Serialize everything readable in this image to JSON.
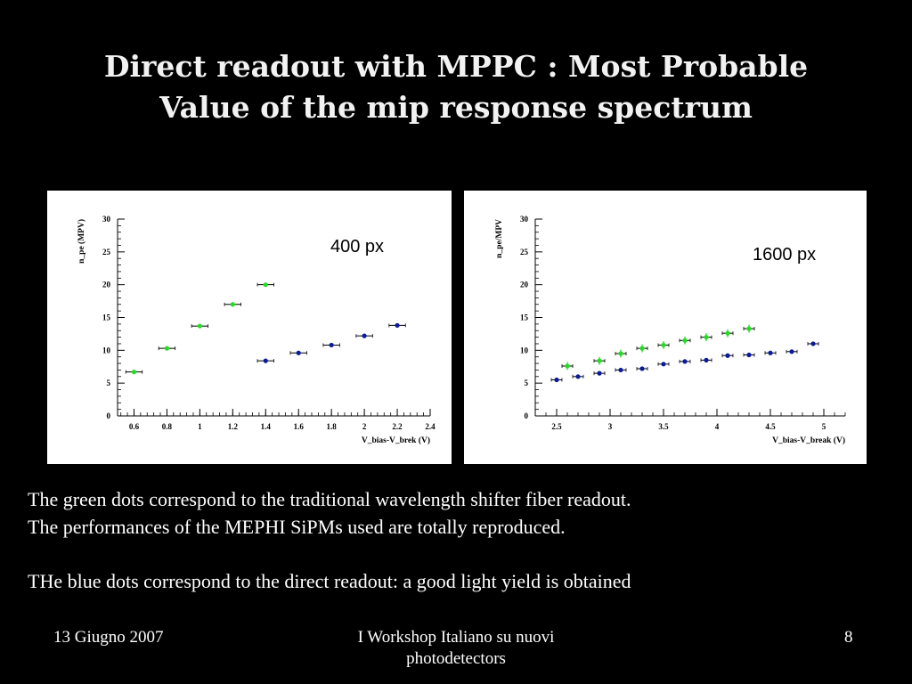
{
  "slide": {
    "title_line1": "Direct readout with MPPC : Most Probable",
    "title_line2": "Value of the mip response spectrum",
    "paragraph1_line1": "The green dots correspond to the traditional wavelength shifter fiber readout.",
    "paragraph1_line2": "The performances of the MEPHI SiPMs used are totally reproduced.",
    "paragraph2": "THe blue dots correspond to the direct readout: a good light yield is obtained",
    "footer_date": "13 Giugno 2007",
    "footer_event": "I Workshop Italiano su nuovi photodetectors",
    "page_number": "8"
  },
  "colors": {
    "green": "#22dd22",
    "blue": "#0a1a9c",
    "background": "#000000",
    "panel": "#ffffff"
  },
  "chart_data": [
    {
      "type": "scatter",
      "annotation": "400 px",
      "xlabel": "V_bias-V_brek (V)",
      "ylabel": "n_pe (MPV)",
      "xlim": [
        0.5,
        2.4
      ],
      "ylim": [
        0,
        30
      ],
      "xticks": [
        "0.6",
        "0.8",
        "1",
        "1.2",
        "1.4",
        "1.6",
        "1.8",
        "2",
        "2.2",
        "2.4"
      ],
      "yticks": [
        "0",
        "5",
        "10",
        "15",
        "20",
        "25",
        "30"
      ],
      "grid": false,
      "series": [
        {
          "color": "green",
          "x": [
            0.6,
            0.8,
            1.0,
            1.2,
            1.4
          ],
          "y": [
            6.7,
            10.3,
            13.7,
            17.0,
            20.0
          ],
          "xerr": 0.05,
          "yerr": 0.1
        },
        {
          "color": "blue",
          "x": [
            1.4,
            1.6,
            1.8,
            2.0,
            2.2
          ],
          "y": [
            8.4,
            9.6,
            10.8,
            12.2,
            13.8
          ],
          "xerr": 0.05,
          "yerr": 0.2
        }
      ]
    },
    {
      "type": "scatter",
      "annotation": "1600 px",
      "xlabel": "V_bias-V_break (V)",
      "ylabel": "n_pe/MPV",
      "xlim": [
        2.3,
        5.2
      ],
      "ylim": [
        0,
        30
      ],
      "xticks": [
        "2.5",
        "3",
        "3.5",
        "4",
        "4.5",
        "5"
      ],
      "yticks": [
        "0",
        "5",
        "10",
        "15",
        "20",
        "25",
        "30"
      ],
      "grid": false,
      "series": [
        {
          "color": "green",
          "x": [
            2.6,
            2.9,
            3.1,
            3.3,
            3.5,
            3.7,
            3.9,
            4.1,
            4.3
          ],
          "y": [
            7.6,
            8.4,
            9.5,
            10.3,
            10.8,
            11.5,
            12.0,
            12.6,
            13.3
          ],
          "xerr": 0.05,
          "yerr": 0.6
        },
        {
          "color": "blue",
          "x": [
            2.5,
            2.7,
            2.9,
            3.1,
            3.3,
            3.5,
            3.7,
            3.9,
            4.1,
            4.3,
            4.5,
            4.7,
            4.9
          ],
          "y": [
            5.5,
            6.0,
            6.5,
            7.0,
            7.2,
            7.9,
            8.3,
            8.5,
            9.2,
            9.3,
            9.6,
            9.8,
            11.0
          ],
          "xerr": 0.05,
          "yerr": 0.3
        }
      ]
    }
  ]
}
